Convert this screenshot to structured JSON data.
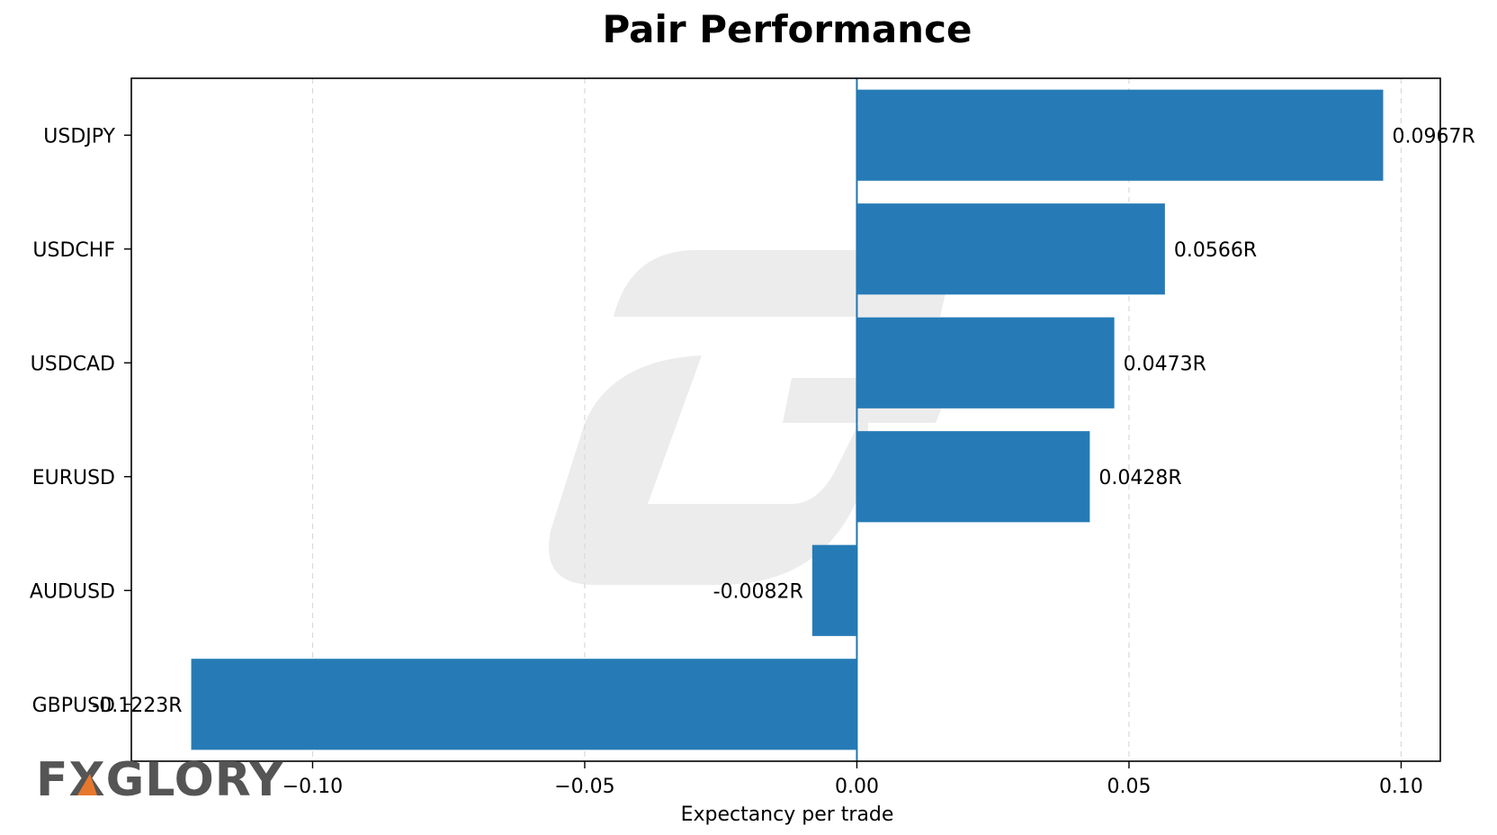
{
  "colors": {
    "bar": "#1f77b4",
    "grid": "#d9d9d9",
    "axis": "#000000",
    "watermark": "#e6e6e6",
    "logo_text": "#555555",
    "logo_accent": "#e8772e"
  },
  "watermark": {
    "brand_text": "FXGLORY"
  },
  "chart_data": {
    "type": "bar",
    "orientation": "horizontal",
    "title": "Pair Performance",
    "xlabel": "Expectancy per trade",
    "ylabel": "",
    "categories": [
      "USDJPY",
      "USDCHF",
      "USDCAD",
      "EURUSD",
      "AUDUSD",
      "GBPUSD"
    ],
    "values": [
      0.0967,
      0.0566,
      0.0473,
      0.0428,
      -0.0082,
      -0.1223
    ],
    "data_labels": [
      "0.0967R",
      "0.0566R",
      "0.0473R",
      "0.0428R",
      "-0.0082R",
      "-0.1223R"
    ],
    "xticks": [
      -0.1,
      -0.05,
      0.0,
      0.05,
      0.1
    ],
    "xtick_labels": [
      "−0.10",
      "−0.05",
      "0.00",
      "0.05",
      "0.10"
    ],
    "xlim": [
      -0.1333,
      0.1072
    ],
    "grid": "vertical dashed",
    "zero_line": true
  }
}
